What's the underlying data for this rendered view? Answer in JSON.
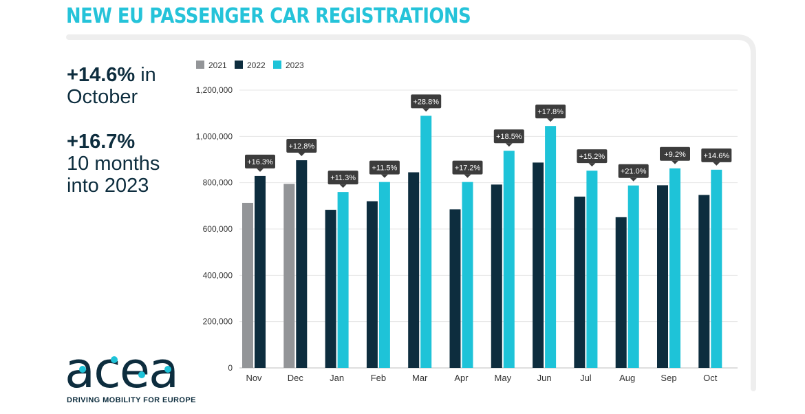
{
  "header": {
    "title": "NEW EU PASSENGER CAR REGISTRATIONS"
  },
  "highlights": [
    {
      "value": "+14.6%",
      "rest": " in",
      "line2": "October"
    },
    {
      "value": "+16.7%",
      "rest": "",
      "line2": "10 months",
      "line3": "into 2023"
    }
  ],
  "logo": {
    "wordmark": "acea",
    "tagline": "DRIVING MOBILITY FOR EUROPE"
  },
  "colors": {
    "title": "#25c3d9",
    "y2021": "#939598",
    "y2022": "#0d2d3e",
    "y2023": "#1ec3d8",
    "callout": "#3c3c3c"
  },
  "chart_data": {
    "type": "bar",
    "title": "NEW EU PASSENGER CAR REGISTRATIONS",
    "xlabel": "",
    "ylabel": "",
    "ylim": [
      0,
      1200000
    ],
    "yticks": [
      0,
      200000,
      400000,
      600000,
      800000,
      1000000,
      1200000
    ],
    "ytick_labels": [
      "0",
      "200,000",
      "400,000",
      "600,000",
      "800,000",
      "1,000,000",
      "1,200,000"
    ],
    "grid": true,
    "legend_position": "top-left",
    "categories": [
      "Nov",
      "Dec",
      "Jan",
      "Feb",
      "Mar",
      "Apr",
      "May",
      "Jun",
      "Jul",
      "Aug",
      "Sep",
      "Oct"
    ],
    "series": [
      {
        "name": "2021",
        "color": "#939598",
        "values": [
          713000,
          795000,
          null,
          null,
          null,
          null,
          null,
          null,
          null,
          null,
          null,
          null
        ]
      },
      {
        "name": "2022",
        "color": "#0d2d3e",
        "values": [
          829000,
          897000,
          683000,
          720000,
          845000,
          685000,
          792000,
          887000,
          740000,
          651000,
          789000,
          747000
        ]
      },
      {
        "name": "2023",
        "color": "#1ec3d8",
        "values": [
          null,
          null,
          760000,
          803000,
          1089000,
          803000,
          938000,
          1045000,
          852000,
          788000,
          862000,
          856000
        ]
      }
    ],
    "annotations": [
      "+16.3%",
      "+12.8%",
      "+11.3%",
      "+11.5%",
      "+28.8%",
      "+17.2%",
      "+18.5%",
      "+17.8%",
      "+15.2%",
      "+21.0%",
      "+9.2%",
      "+14.6%"
    ]
  }
}
